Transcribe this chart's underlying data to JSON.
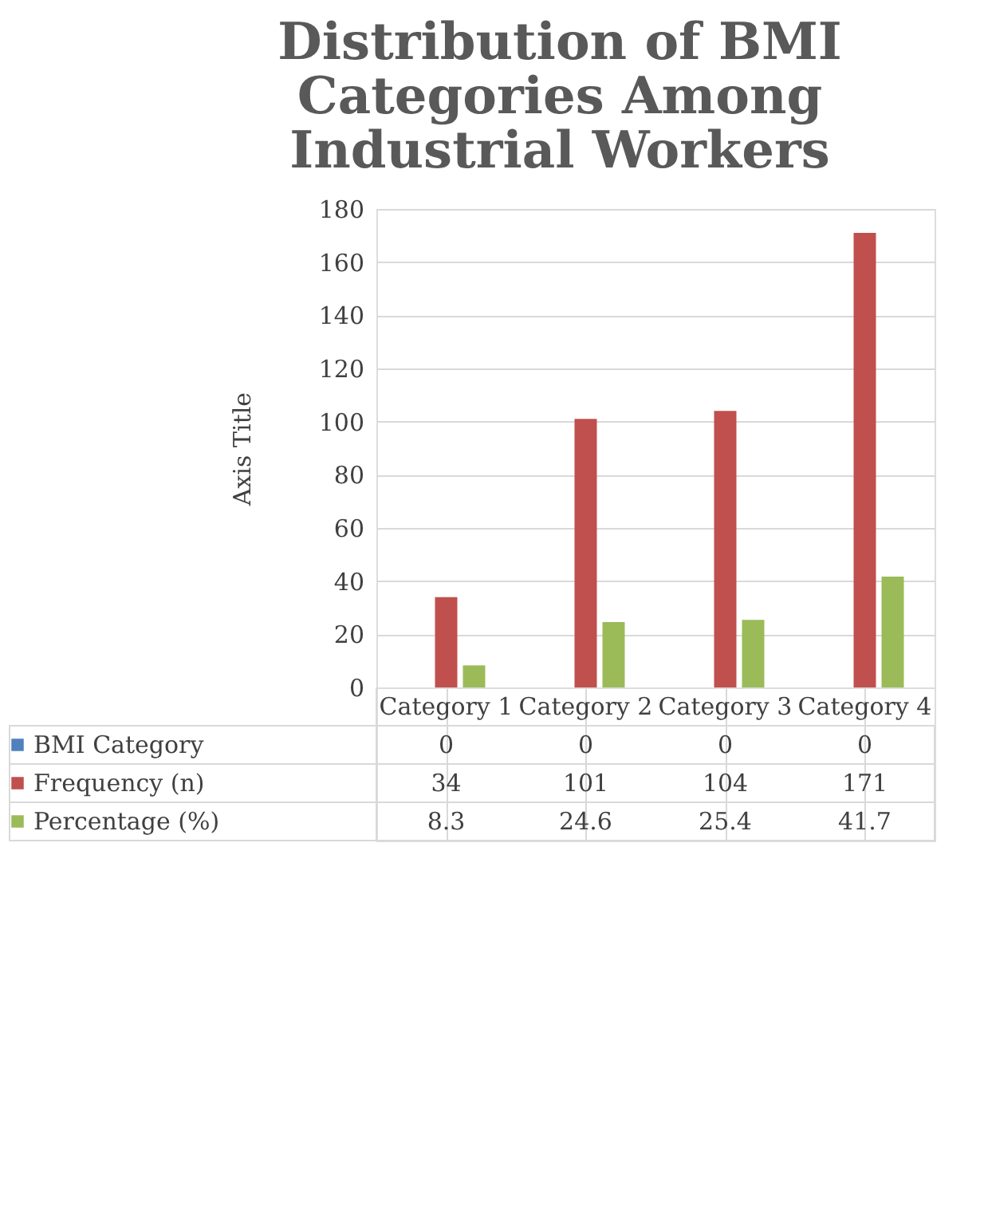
{
  "chart_data": {
    "type": "bar",
    "title": "Distribution of BMI Categories Among Industrial Workers",
    "ylabel": "Axis Title",
    "categories": [
      "Category 1",
      "Category 2",
      "Category 3",
      "Category 4"
    ],
    "series": [
      {
        "name": "BMI Category",
        "color": "#4f81bd",
        "values": [
          0,
          0,
          0,
          0
        ]
      },
      {
        "name": "Frequency (n)",
        "color": "#c0504d",
        "values": [
          34,
          101,
          104,
          171
        ]
      },
      {
        "name": "Percentage (%)",
        "color": "#9bbb59",
        "values": [
          8.3,
          24.6,
          25.4,
          41.7
        ]
      }
    ],
    "ylim": [
      0,
      180
    ],
    "yticks": [
      0,
      20,
      40,
      60,
      80,
      100,
      120,
      140,
      160,
      180
    ],
    "grid": "y",
    "data_labels": true,
    "legend": "bottom"
  }
}
